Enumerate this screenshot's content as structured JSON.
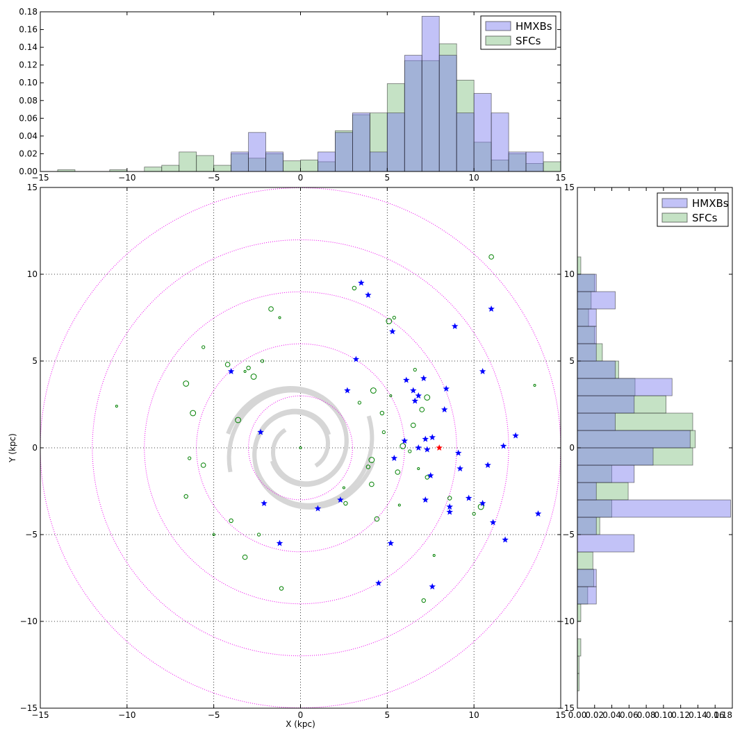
{
  "chart_data": [
    {
      "panel": "top-histogram",
      "type": "bar",
      "orientation": "vertical",
      "xlim": [
        -15,
        15
      ],
      "ylim": [
        0,
        0.18
      ],
      "x_ticks": [
        -15,
        -10,
        -5,
        0,
        5,
        10,
        15
      ],
      "x_tick_labels": [
        "−15",
        "−10",
        "−5",
        "0",
        "5",
        "10",
        "15"
      ],
      "y_ticks": [
        0,
        0.02,
        0.04,
        0.06,
        0.08,
        0.1,
        0.12,
        0.14,
        0.16,
        0.18
      ],
      "y_tick_labels": [
        "0.00",
        "0.02",
        "0.04",
        "0.06",
        "0.08",
        "0.10",
        "0.12",
        "0.14",
        "0.16",
        "0.18"
      ],
      "legend": {
        "position": "upper-right",
        "entries": [
          "HMXBs",
          "SFCs"
        ]
      },
      "series": [
        {
          "name": "HMXBs",
          "color": "#7777ee",
          "bins": [
            [
              -4,
              -3,
              0.022
            ],
            [
              -3,
              -2,
              0.044
            ],
            [
              -2,
              -1,
              0.022
            ],
            [
              1,
              2,
              0.022
            ],
            [
              2,
              3,
              0.044
            ],
            [
              3,
              4,
              0.066
            ],
            [
              4,
              5,
              0.022
            ],
            [
              5,
              6,
              0.066
            ],
            [
              6,
              7,
              0.131
            ],
            [
              7,
              8,
              0.175
            ],
            [
              8,
              9,
              0.131
            ],
            [
              9,
              10,
              0.066
            ],
            [
              10,
              11,
              0.088
            ],
            [
              11,
              12,
              0.066
            ],
            [
              12,
              13,
              0.022
            ],
            [
              13,
              14,
              0.022
            ]
          ]
        },
        {
          "name": "SFCs",
          "color": "#7fbf7f",
          "bins": [
            [
              -14,
              -13,
              0.002
            ],
            [
              -11,
              -10,
              0.002
            ],
            [
              -9,
              -8,
              0.005
            ],
            [
              -8,
              -7,
              0.007
            ],
            [
              -7,
              -6,
              0.022
            ],
            [
              -6,
              -5,
              0.018
            ],
            [
              -5,
              -4,
              0.007
            ],
            [
              -4,
              -3,
              0.02
            ],
            [
              -3,
              -2,
              0.015
            ],
            [
              -2,
              -1,
              0.02
            ],
            [
              -1,
              0,
              0.012
            ],
            [
              0,
              1,
              0.013
            ],
            [
              1,
              2,
              0.011
            ],
            [
              2,
              3,
              0.046
            ],
            [
              3,
              4,
              0.064
            ],
            [
              4,
              5,
              0.066
            ],
            [
              5,
              6,
              0.099
            ],
            [
              6,
              7,
              0.125
            ],
            [
              7,
              8,
              0.125
            ],
            [
              8,
              9,
              0.144
            ],
            [
              9,
              10,
              0.103
            ],
            [
              10,
              11,
              0.033
            ],
            [
              11,
              12,
              0.013
            ],
            [
              12,
              13,
              0.02
            ],
            [
              13,
              14,
              0.009
            ],
            [
              14,
              15,
              0.011
            ]
          ]
        }
      ]
    },
    {
      "panel": "right-histogram",
      "type": "bar",
      "orientation": "horizontal",
      "xlim": [
        0,
        0.18
      ],
      "ylim": [
        -15,
        15
      ],
      "x_ticks": [
        0,
        0.02,
        0.04,
        0.06,
        0.08,
        0.1,
        0.12,
        0.14,
        0.16,
        0.18
      ],
      "x_tick_labels": [
        "0.00",
        "0.02",
        "0.04",
        "0.06",
        "0.08",
        "0.10",
        "0.12",
        "0.14",
        "0.16",
        "0.18"
      ],
      "y_ticks": [
        -15,
        -10,
        -5,
        0,
        5,
        10,
        15
      ],
      "y_tick_labels": [
        "−15",
        "−10",
        "−5",
        "0",
        "5",
        "10",
        "15"
      ],
      "legend": {
        "position": "upper-right",
        "entries": [
          "HMXBs",
          "SFCs"
        ]
      },
      "series": [
        {
          "name": "HMXBs",
          "color": "#7777ee",
          "bins": [
            [
              -9,
              -8,
              0.022
            ],
            [
              -8,
              -7,
              0.022
            ],
            [
              -6,
              -5,
              0.066
            ],
            [
              -5,
              -4,
              0.022
            ],
            [
              -4,
              -3,
              0.178
            ],
            [
              -3,
              -2,
              0.022
            ],
            [
              -2,
              -1,
              0.066
            ],
            [
              -1,
              0,
              0.088
            ],
            [
              0,
              1,
              0.131
            ],
            [
              1,
              2,
              0.044
            ],
            [
              2,
              3,
              0.066
            ],
            [
              3,
              4,
              0.11
            ],
            [
              4,
              5,
              0.044
            ],
            [
              5,
              6,
              0.022
            ],
            [
              6,
              7,
              0.022
            ],
            [
              7,
              8,
              0.022
            ],
            [
              8,
              9,
              0.044
            ],
            [
              9,
              10,
              0.022
            ]
          ]
        },
        {
          "name": "SFCs",
          "color": "#7fbf7f",
          "bins": [
            [
              -14,
              -13,
              0.002
            ],
            [
              -13,
              -12,
              0.002
            ],
            [
              -12,
              -11,
              0.004
            ],
            [
              -10,
              -9,
              0.004
            ],
            [
              -9,
              -8,
              0.012
            ],
            [
              -8,
              -7,
              0.019
            ],
            [
              -7,
              -6,
              0.018
            ],
            [
              -5,
              -4,
              0.026
            ],
            [
              -4,
              -3,
              0.04
            ],
            [
              -3,
              -2,
              0.059
            ],
            [
              -2,
              -1,
              0.04
            ],
            [
              -1,
              0,
              0.134
            ],
            [
              0,
              1,
              0.137
            ],
            [
              1,
              2,
              0.134
            ],
            [
              2,
              3,
              0.103
            ],
            [
              3,
              4,
              0.067
            ],
            [
              4,
              5,
              0.048
            ],
            [
              5,
              6,
              0.029
            ],
            [
              6,
              7,
              0.02
            ],
            [
              7,
              8,
              0.013
            ],
            [
              8,
              9,
              0.016
            ],
            [
              9,
              10,
              0.02
            ],
            [
              10,
              11,
              0.004
            ]
          ]
        }
      ]
    },
    {
      "panel": "main-scatter",
      "type": "scatter",
      "xlabel": "X (kpc)",
      "ylabel": "Y (kpc)",
      "xlim": [
        -15,
        15
      ],
      "ylim": [
        -15,
        15
      ],
      "grid": true,
      "x_ticks": [
        -15,
        -10,
        -5,
        0,
        5,
        10,
        15
      ],
      "x_tick_labels": [
        "−15",
        "−10",
        "−5",
        "0",
        "5",
        "10",
        "15"
      ],
      "y_ticks": [
        -15,
        -10,
        -5,
        0,
        5,
        10,
        15
      ],
      "y_tick_labels": [
        "−15",
        "−10",
        "−5",
        "0",
        "5",
        "10",
        "15"
      ],
      "reference_circles_radii": [
        3,
        6,
        9,
        12,
        15
      ],
      "reference_circle_color": "#ee00ee",
      "spiral_arm_color": "#d6d6d6",
      "sun": {
        "x": 8,
        "y": 0,
        "color": "#ff0000"
      },
      "series": [
        {
          "name": "HMXBs",
          "marker": "star",
          "color": "#0000ff",
          "points": [
            [
              3.5,
              9.5
            ],
            [
              3.9,
              8.8
            ],
            [
              5.3,
              6.7
            ],
            [
              3.2,
              5.1
            ],
            [
              2.7,
              3.3
            ],
            [
              -4,
              4.4
            ],
            [
              -2.3,
              0.9
            ],
            [
              6.1,
              3.9
            ],
            [
              7.1,
              4
            ],
            [
              6.5,
              3.3
            ],
            [
              6.6,
              2.7
            ],
            [
              6.8,
              3
            ],
            [
              8.4,
              3.4
            ],
            [
              8.3,
              2.2
            ],
            [
              6,
              0.4
            ],
            [
              6.8,
              0
            ],
            [
              7.2,
              0.5
            ],
            [
              7.6,
              0.6
            ],
            [
              7.3,
              -0.1
            ],
            [
              5.4,
              -0.6
            ],
            [
              9.1,
              -0.3
            ],
            [
              7.5,
              -1.6
            ],
            [
              9.2,
              -1.2
            ],
            [
              7.2,
              -3.0
            ],
            [
              8.6,
              -3.4
            ],
            [
              8.6,
              -3.7
            ],
            [
              9.7,
              -2.9
            ],
            [
              10.5,
              -3.2
            ],
            [
              10.8,
              -1.0
            ],
            [
              11.7,
              0.1
            ],
            [
              12.4,
              0.7
            ],
            [
              10.5,
              4.4
            ],
            [
              8.9,
              7.0
            ],
            [
              11,
              8
            ],
            [
              11.1,
              -4.3
            ],
            [
              11.8,
              -5.3
            ],
            [
              13.7,
              -3.8
            ],
            [
              2.3,
              -3
            ],
            [
              1,
              -3.5
            ],
            [
              -2.1,
              -3.2
            ],
            [
              -1.2,
              -5.5
            ],
            [
              5.2,
              -5.5
            ],
            [
              4.5,
              -7.8
            ],
            [
              7.6,
              -8
            ]
          ]
        },
        {
          "name": "SFCs",
          "marker": "circle",
          "color": "#008000",
          "points": [
            [
              -10.6,
              2.4
            ],
            [
              -6.6,
              -2.8
            ],
            [
              -6.2,
              2
            ],
            [
              -5.6,
              5.8
            ],
            [
              -4.2,
              4.8
            ],
            [
              -3.2,
              4.4
            ],
            [
              -3,
              4.6
            ],
            [
              -2.7,
              4.1
            ],
            [
              -2.2,
              5.0
            ],
            [
              -1.7,
              8
            ],
            [
              -1.2,
              7.5
            ],
            [
              -1.1,
              -8.1
            ],
            [
              -6.6,
              3.7
            ],
            [
              -6.4,
              -0.6
            ],
            [
              -5.6,
              -1
            ],
            [
              -5,
              -5
            ],
            [
              -4,
              -4.2
            ],
            [
              -3.6,
              1.6
            ],
            [
              -2.4,
              -5
            ],
            [
              -3.2,
              -6.3
            ],
            [
              0,
              0
            ],
            [
              3.1,
              9.2
            ],
            [
              5.1,
              7.3
            ],
            [
              5.4,
              7.5
            ],
            [
              4.4,
              -4.1
            ],
            [
              5.2,
              3.0
            ],
            [
              4.7,
              2.0
            ],
            [
              5.9,
              0.1
            ],
            [
              6.3,
              -0.2
            ],
            [
              5.6,
              -1.4
            ],
            [
              6.8,
              -1.2
            ],
            [
              7.3,
              -1.7
            ],
            [
              7.3,
              2.9
            ],
            [
              6.6,
              4.5
            ],
            [
              7,
              2.2
            ],
            [
              5.7,
              -3.3
            ],
            [
              8.6,
              -2.9
            ],
            [
              10.4,
              -3.4
            ],
            [
              10,
              -3.8
            ],
            [
              11,
              11
            ],
            [
              13.5,
              3.6
            ],
            [
              3.9,
              -1.1
            ],
            [
              4.1,
              -0.7
            ],
            [
              4.8,
              0.9
            ],
            [
              6.5,
              1.3
            ],
            [
              2.5,
              -2.3
            ],
            [
              2.6,
              -3.2
            ],
            [
              4.2,
              3.3
            ],
            [
              3.4,
              2.6
            ],
            [
              4.1,
              -2.1
            ],
            [
              7.7,
              -6.2
            ],
            [
              7.1,
              -8.8
            ]
          ]
        }
      ],
      "legend": {
        "position": "none"
      }
    }
  ]
}
